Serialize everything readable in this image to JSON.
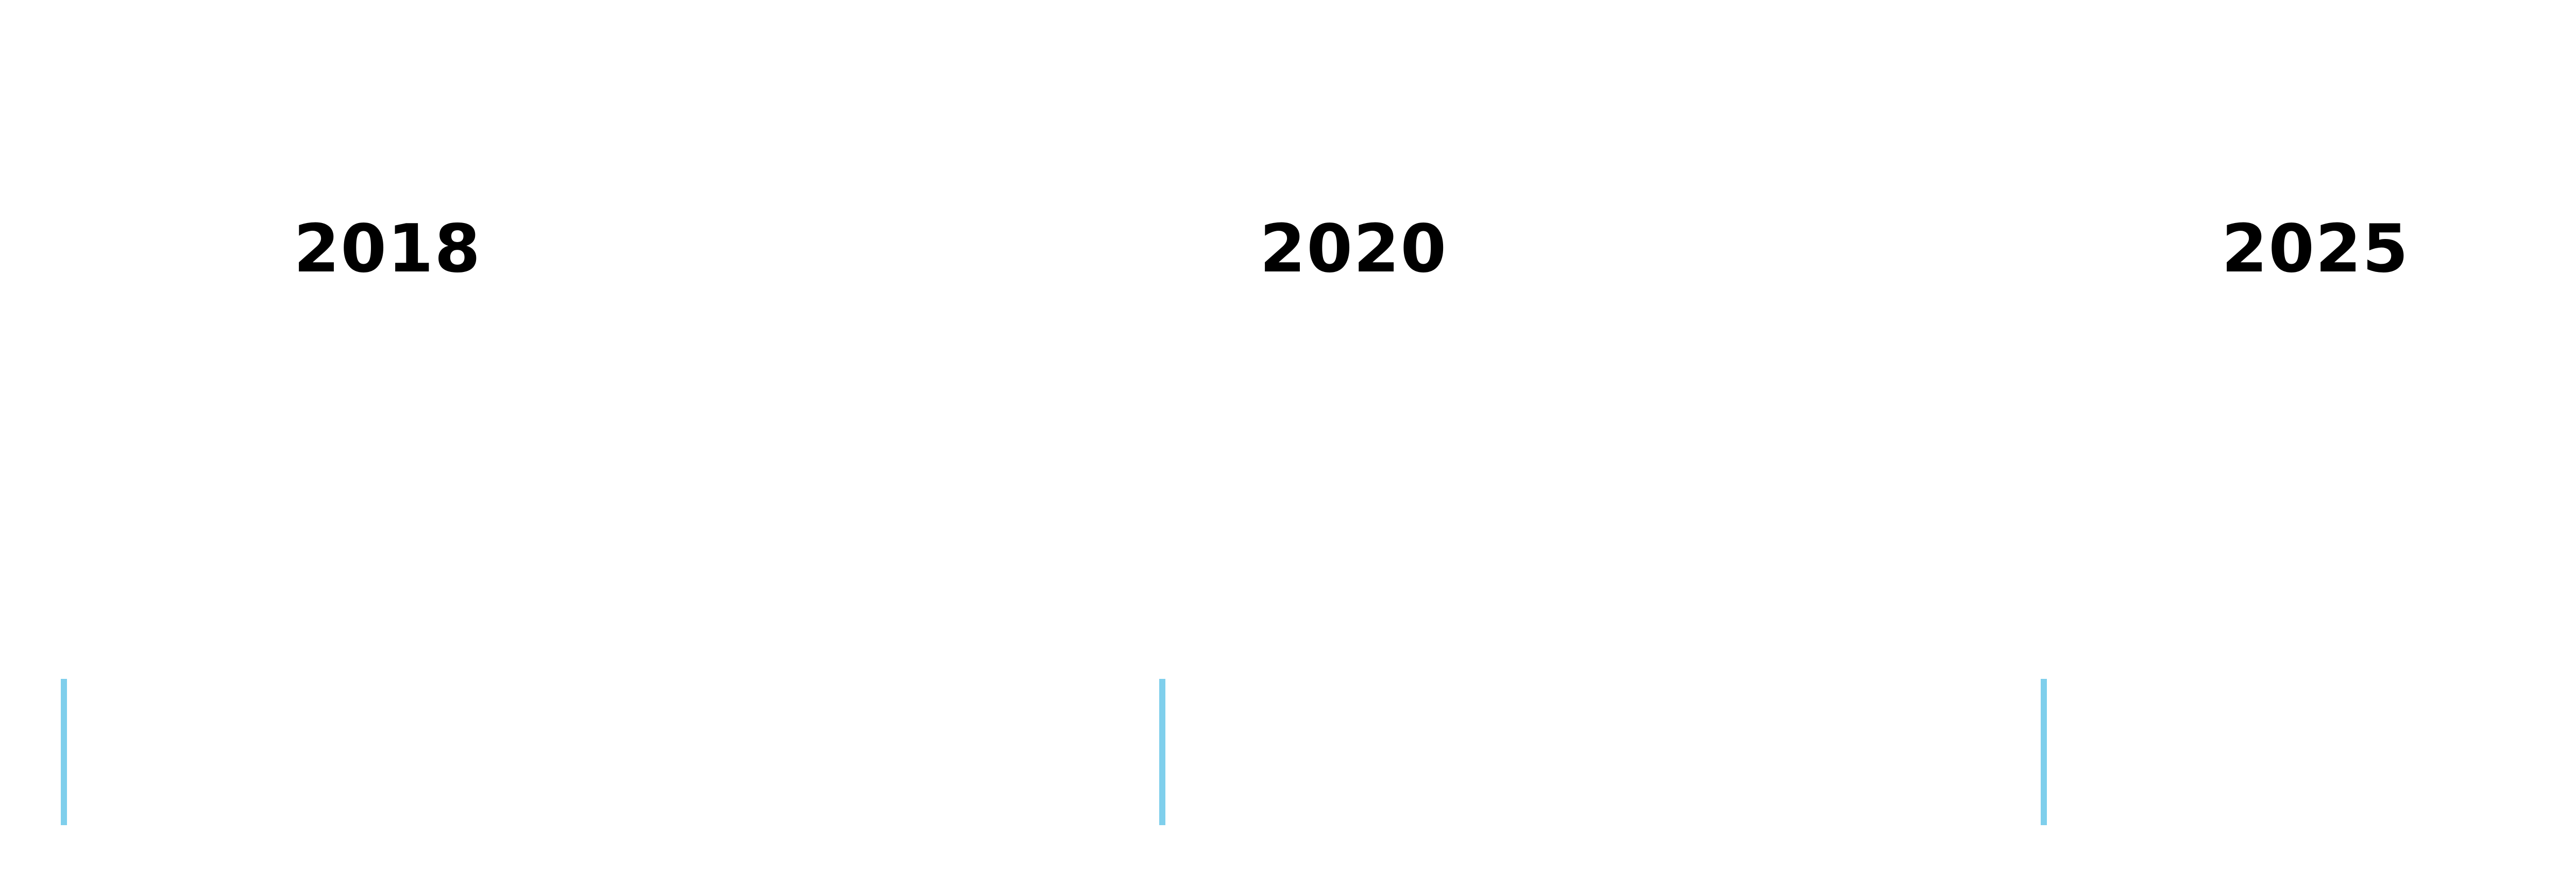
{
  "timeline": {
    "years": [
      "2018",
      "2020",
      "2025"
    ],
    "tick_color": "#7fcfec",
    "label_color": "#000000"
  }
}
